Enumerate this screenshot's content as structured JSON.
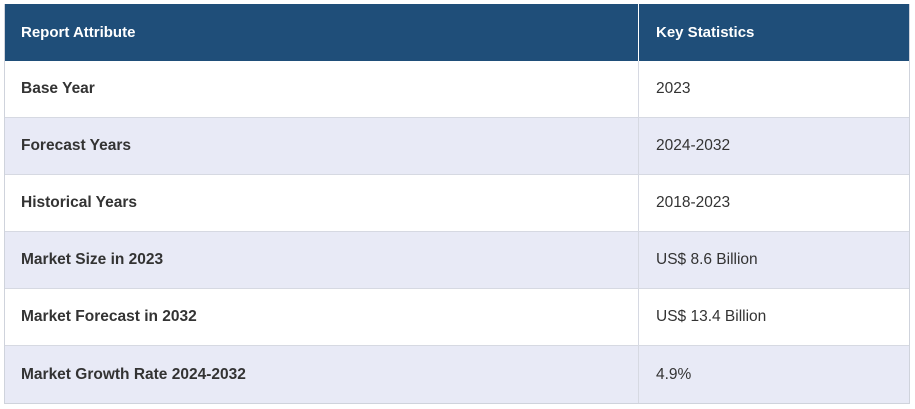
{
  "table": {
    "headers": {
      "attribute": "Report Attribute",
      "statistics": "Key Statistics"
    },
    "rows": [
      {
        "attribute": "Base Year",
        "value": "2023"
      },
      {
        "attribute": "Forecast Years",
        "value": "2024-2032"
      },
      {
        "attribute": "Historical Years",
        "value": "2018-2023"
      },
      {
        "attribute": "Market Size in 2023",
        "value": "US$ 8.6 Billion"
      },
      {
        "attribute": "Market Forecast in 2032",
        "value": "US$ 13.4 Billion"
      },
      {
        "attribute": "Market Growth Rate 2024-2032",
        "value": "4.9%"
      }
    ]
  },
  "colors": {
    "header_bg": "#1f4e79",
    "header_text": "#ffffff",
    "alt_row_bg": "#e8eaf6",
    "body_text": "#333333"
  }
}
